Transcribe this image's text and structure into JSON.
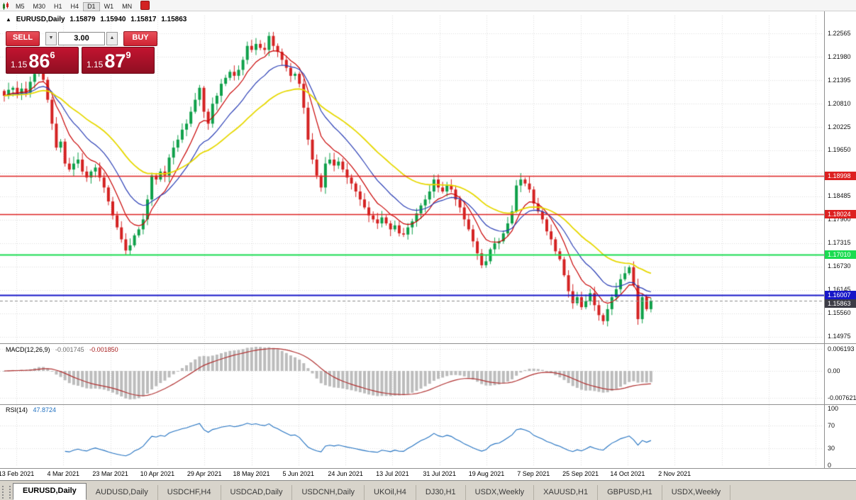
{
  "toolbar": {
    "periods": [
      "M5",
      "M30",
      "H1",
      "H4",
      "D1",
      "W1",
      "MN"
    ],
    "active": "D1"
  },
  "chart_header": {
    "collapse_icon": "▲",
    "symbol": "EURUSD,Daily",
    "ohlc": [
      "1.15879",
      "1.15940",
      "1.15817",
      "1.15863"
    ]
  },
  "trade_panel": {
    "sell_label": "SELL",
    "buy_label": "BUY",
    "volume": "3.00",
    "volume_down_icon": "▼",
    "volume_up_icon": "▲",
    "sell_price": {
      "prefix": "1.15",
      "pips": "86",
      "pipette": "6"
    },
    "buy_price": {
      "prefix": "1.15",
      "pips": "87",
      "pipette": "9"
    }
  },
  "chart_data": {
    "type": "candlestick",
    "title": "EURUSD,Daily",
    "ylim": [
      1.1487,
      1.2269
    ],
    "x_labels": [
      "13 Feb 2021",
      "4 Mar 2021",
      "23 Mar 2021",
      "10 Apr 2021",
      "29 Apr 2021",
      "18 May 2021",
      "5 Jun 2021",
      "24 Jun 2021",
      "13 Jul 2021",
      "31 Jul 2021",
      "19 Aug 2021",
      "7 Sep 2021",
      "25 Sep 2021",
      "14 Oct 2021",
      "2 Nov 2021"
    ],
    "closes": [
      1.21,
      1.2115,
      1.212,
      1.2105,
      1.2118,
      1.2108,
      1.2135,
      1.2155,
      1.217,
      1.214,
      1.209,
      1.203,
      1.197,
      1.1985,
      1.193,
      1.1915,
      1.193,
      1.194,
      1.191,
      1.1895,
      1.191,
      1.192,
      1.1895,
      1.187,
      1.1835,
      1.18,
      1.177,
      1.174,
      1.1712,
      1.1725,
      1.175,
      1.1765,
      1.179,
      1.184,
      1.19,
      1.189,
      1.191,
      1.19,
      1.1945,
      1.197,
      1.199,
      1.2015,
      1.203,
      1.206,
      1.209,
      1.212,
      1.206,
      1.203,
      1.208,
      1.21,
      1.213,
      1.2145,
      1.216,
      1.215,
      1.2165,
      1.219,
      1.2225,
      1.2215,
      1.223,
      1.222,
      1.2215,
      1.225,
      1.2225,
      1.221,
      1.219,
      1.217,
      1.215,
      1.2155,
      1.213,
      1.207,
      1.199,
      1.194,
      1.19,
      1.187,
      1.193,
      1.194,
      1.1925,
      1.1935,
      1.1915,
      1.1895,
      1.188,
      1.186,
      1.184,
      1.182,
      1.18,
      1.179,
      1.178,
      1.1795,
      1.178,
      1.1765,
      1.1775,
      1.1755,
      1.1752,
      1.177,
      1.1785,
      1.1805,
      1.1825,
      1.184,
      1.186,
      1.189,
      1.187,
      1.186,
      1.1875,
      1.1865,
      1.184,
      1.182,
      1.179,
      1.1765,
      1.1735,
      1.1705,
      1.1675,
      1.1685,
      1.1715,
      1.173,
      1.1735,
      1.1755,
      1.178,
      1.181,
      1.1875,
      1.189,
      1.188,
      1.1865,
      1.183,
      1.181,
      1.179,
      1.176,
      1.174,
      1.171,
      1.169,
      1.165,
      1.161,
      1.158,
      1.1595,
      1.157,
      1.1585,
      1.1605,
      1.1575,
      1.155,
      1.1535,
      1.1565,
      1.1595,
      1.1615,
      1.164,
      1.1655,
      1.167,
      1.1625,
      1.154,
      1.1595,
      1.1565,
      1.15863
    ],
    "candle_up_color": "#0fa04a",
    "candle_down_color": "#d42222",
    "grid_color": "#dcdcdc",
    "price_axis_ticks": [
      "1.22565",
      "1.21980",
      "1.21395",
      "1.20810",
      "1.20225",
      "1.19650",
      "1.18485",
      "1.17900",
      "1.17315",
      "1.16730",
      "1.16145",
      "1.15560",
      "1.14975"
    ],
    "levels": [
      {
        "value": 1.18998,
        "label": "1.18998",
        "color": "#dd2020"
      },
      {
        "value": 1.18024,
        "label": "1.18024",
        "color": "#dd2020"
      },
      {
        "value": 1.1701,
        "label": "1.17010",
        "color": "#1adc50"
      },
      {
        "value": 1.16007,
        "label": "1.16007",
        "color": "#1616c8"
      }
    ],
    "bid": {
      "value": 1.15863,
      "label": "1.15863",
      "color": "#3c3c46"
    },
    "moving_averages": [
      {
        "period": 8,
        "color": "#c80000"
      },
      {
        "period": 16,
        "color": "#283cb4"
      },
      {
        "period": 34,
        "color": "#e6d800"
      }
    ],
    "macd": {
      "label": "MACD(12,26,9)",
      "values": [
        "-0.001745",
        "-0.001850"
      ],
      "axis_ticks": [
        "0.006193",
        "0.00",
        "-0.007621"
      ],
      "histogram_color": "#bcbcbc",
      "signal_color": "#b03030"
    },
    "rsi": {
      "label": "RSI(14)",
      "value": "47.8724",
      "axis_ticks": [
        100,
        70,
        30,
        0
      ],
      "levels": [
        70,
        30
      ],
      "line_color": "#2070c0"
    }
  },
  "tabs": [
    {
      "label": "EURUSD,Daily",
      "active": true
    },
    {
      "label": "AUDUSD,Daily",
      "active": false
    },
    {
      "label": "USDCHF,H4",
      "active": false
    },
    {
      "label": "USDCAD,Daily",
      "active": false
    },
    {
      "label": "USDCNH,Daily",
      "active": false
    },
    {
      "label": "UKOil,H4",
      "active": false
    },
    {
      "label": "DJ30,H1",
      "active": false
    },
    {
      "label": "USDX,Weekly",
      "active": false
    },
    {
      "label": "XAUUSD,H1",
      "active": false
    },
    {
      "label": "GBPUSD,H1",
      "active": false
    },
    {
      "label": "USDX,Weekly",
      "active": false
    }
  ]
}
